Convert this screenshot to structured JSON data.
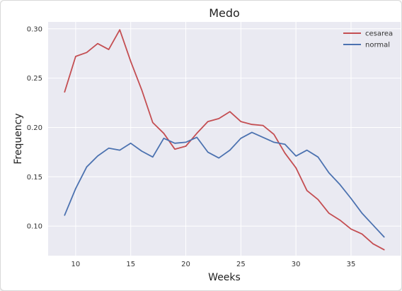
{
  "chart_data": {
    "type": "line",
    "title": "Medo",
    "xlabel": "Weeks",
    "ylabel": "Frequency",
    "xlim": [
      7.5,
      39.5
    ],
    "ylim": [
      0.07,
      0.307
    ],
    "xticks": [
      10,
      15,
      20,
      25,
      30,
      35
    ],
    "yticks": [
      0.1,
      0.15,
      0.2,
      0.25,
      0.3
    ],
    "ytick_labels": [
      "0.10",
      "0.15",
      "0.20",
      "0.25",
      "0.30"
    ],
    "grid": true,
    "legend_position": "top-right",
    "x": [
      9,
      10,
      11,
      12,
      13,
      14,
      15,
      16,
      17,
      18,
      19,
      20,
      21,
      22,
      23,
      24,
      25,
      26,
      27,
      28,
      29,
      30,
      31,
      32,
      33,
      34,
      35,
      36,
      37,
      38
    ],
    "series": [
      {
        "name": "cesarea",
        "color": "#c44e52",
        "values": [
          0.236,
          0.272,
          0.276,
          0.285,
          0.279,
          0.299,
          0.267,
          0.238,
          0.205,
          0.194,
          0.178,
          0.181,
          0.194,
          0.206,
          0.209,
          0.216,
          0.206,
          0.203,
          0.202,
          0.193,
          0.174,
          0.159,
          0.136,
          0.127,
          0.113,
          0.106,
          0.097,
          0.092,
          0.082,
          0.076
        ]
      },
      {
        "name": "normal",
        "color": "#4c72b0",
        "values": [
          0.111,
          0.138,
          0.16,
          0.171,
          0.179,
          0.177,
          0.184,
          0.176,
          0.17,
          0.189,
          0.184,
          0.185,
          0.19,
          0.175,
          0.169,
          0.177,
          0.189,
          0.195,
          0.19,
          0.185,
          0.183,
          0.171,
          0.177,
          0.17,
          0.154,
          0.142,
          0.128,
          0.113,
          0.101,
          0.089
        ]
      }
    ]
  }
}
